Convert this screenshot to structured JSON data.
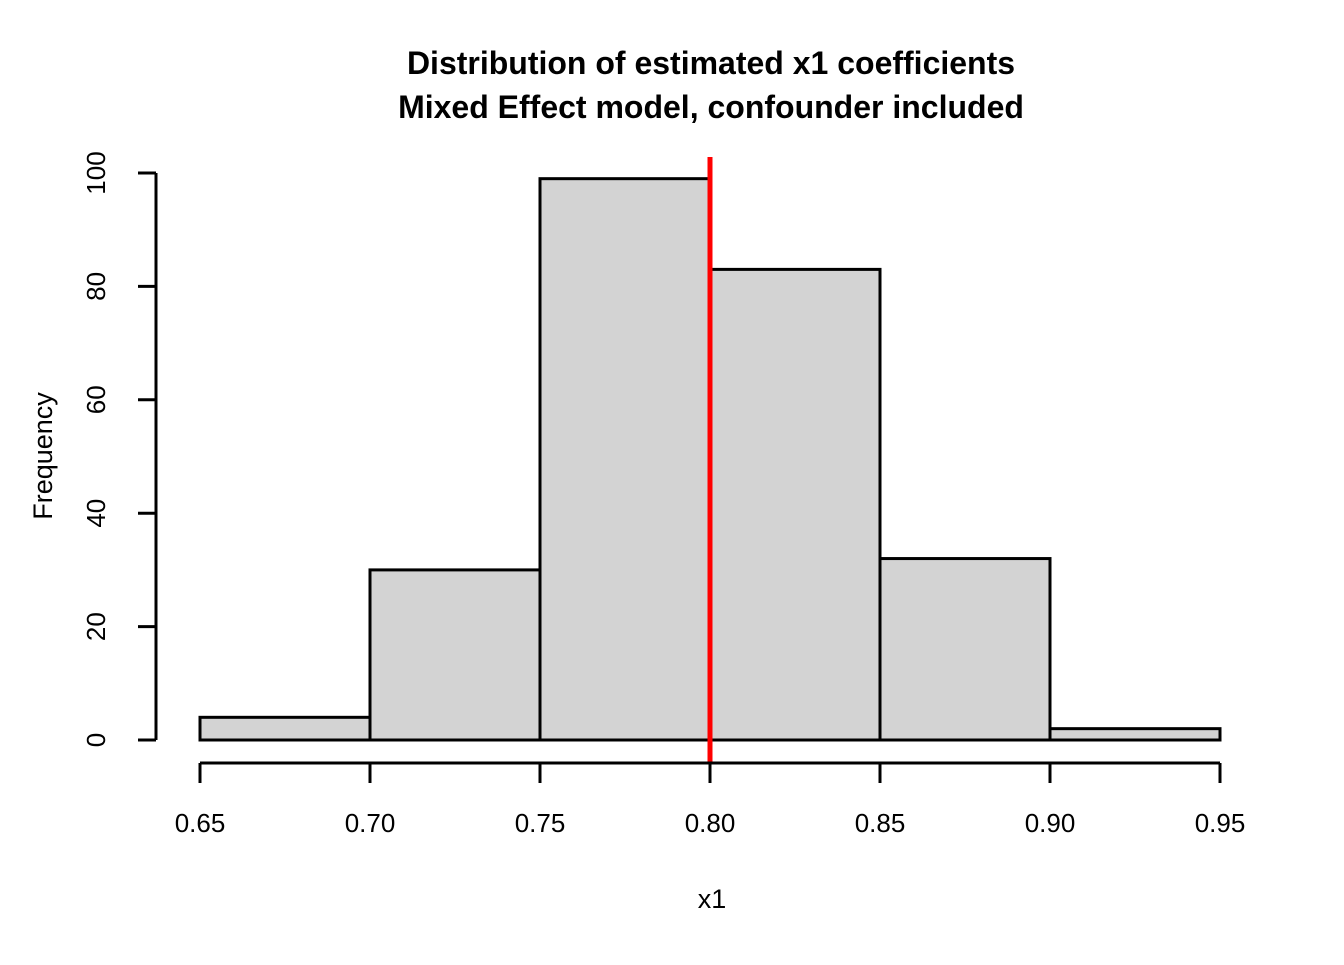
{
  "title": {
    "line1": "Distribution of estimated x1 coefficients",
    "line2": "Mixed Effect model, confounder included"
  },
  "chart_data": {
    "type": "bar",
    "subtype": "histogram",
    "title": "Distribution of estimated x1 coefficients",
    "subtitle": "Mixed Effect model, confounder included",
    "xlabel": "x1",
    "ylabel": "Frequency",
    "bin_breaks": [
      0.65,
      0.7,
      0.75,
      0.8,
      0.85,
      0.9,
      0.95
    ],
    "counts": [
      4,
      30,
      99,
      83,
      32,
      2
    ],
    "x_tick_labels": [
      "0.65",
      "0.70",
      "0.75",
      "0.80",
      "0.85",
      "0.90",
      "0.95"
    ],
    "y_ticks": [
      0,
      20,
      40,
      60,
      80,
      100
    ],
    "xlim": [
      0.65,
      0.95
    ],
    "ylim": [
      0,
      100
    ],
    "grid": false,
    "legend": null,
    "vline": {
      "x": 0.8,
      "color": "#FF0000"
    },
    "colors": {
      "bar_fill": "#D3D3D3",
      "bar_stroke": "#000000",
      "axis": "#000000",
      "text": "#000000",
      "background": "#FFFFFF"
    }
  }
}
